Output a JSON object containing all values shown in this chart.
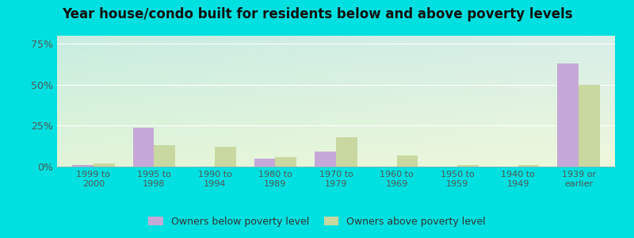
{
  "title": "Year house/condo built for residents below and above poverty levels",
  "categories": [
    "1999 to\n2000",
    "1995 to\n1998",
    "1990 to\n1994",
    "1980 to\n1989",
    "1970 to\n1979",
    "1960 to\n1969",
    "1950 to\n1959",
    "1940 to\n1949",
    "1939 or\nearlier"
  ],
  "below_poverty": [
    1.0,
    24.0,
    0.0,
    5.0,
    9.0,
    0.0,
    0.0,
    0.0,
    63.0
  ],
  "above_poverty": [
    2.0,
    13.0,
    12.0,
    6.0,
    18.0,
    7.0,
    1.0,
    1.0,
    50.0
  ],
  "below_color": "#c6a8d8",
  "above_color": "#c8d8a0",
  "ylim": [
    0,
    80
  ],
  "yticks": [
    0,
    25,
    50,
    75
  ],
  "ytick_labels": [
    "0%",
    "25%",
    "50%",
    "75%"
  ],
  "title_fontsize": 12,
  "legend_below_label": "Owners below poverty level",
  "legend_above_label": "Owners above poverty level",
  "bar_width": 0.35,
  "figure_bg": "#00e0e0",
  "plot_bg_topleft": "#c8ede0",
  "plot_bg_topright": "#d8eee8",
  "plot_bg_bottomleft": "#e8f5dc",
  "plot_bg_bottomright": "#f0f8e0",
  "grid_color": "#ffffff",
  "tick_color": "#555555",
  "title_color": "#111111"
}
